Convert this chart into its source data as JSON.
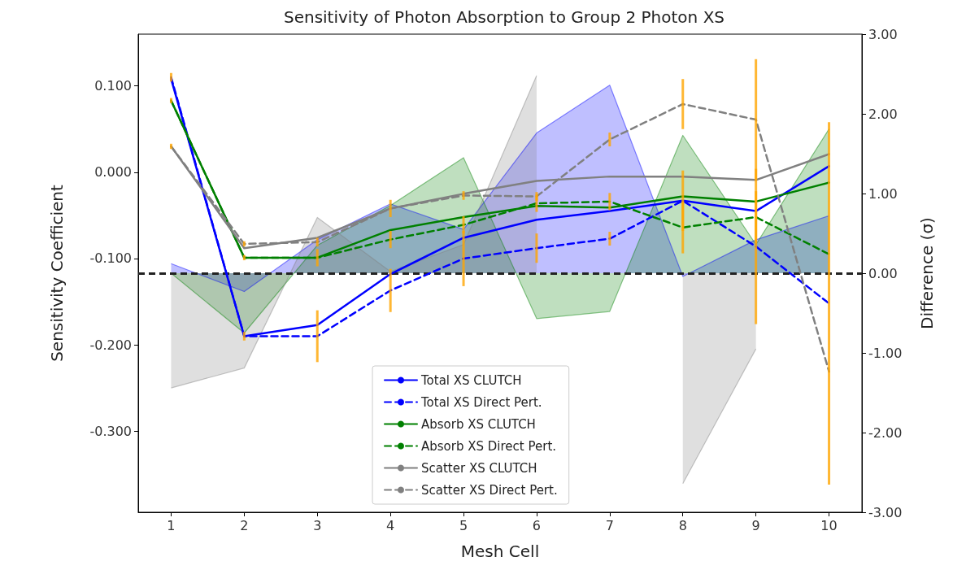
{
  "chart_data": {
    "type": "line",
    "title": "Sensitivity of Photon Absorption to Group 2 Photon XS",
    "xlabel": "Mesh Cell",
    "ylabel": "Sensitivity Coefficient",
    "y2label": "Difference (σ)",
    "x": [
      1,
      2,
      3,
      4,
      5,
      6,
      7,
      8,
      9,
      10
    ],
    "xlim": [
      0.55,
      10.45
    ],
    "xticks": [
      1,
      2,
      3,
      4,
      5,
      6,
      7,
      8,
      9,
      10
    ],
    "ylim": [
      -0.394,
      0.16
    ],
    "yticks": [
      {
        "value": -0.3,
        "label": "-0.300"
      },
      {
        "value": -0.2,
        "label": "-0.200"
      },
      {
        "value": -0.1,
        "label": "-0.100"
      },
      {
        "value": 0,
        "label": "0.000"
      },
      {
        "value": 0.1,
        "label": "0.100"
      }
    ],
    "y2lim": [
      -3,
      3
    ],
    "y2ticks": [
      {
        "value": -3,
        "label": "-3.00"
      },
      {
        "value": -2,
        "label": "-2.00"
      },
      {
        "value": -1,
        "label": "-1.00"
      },
      {
        "value": 0,
        "label": "0.00"
      },
      {
        "value": 1,
        "label": "1.00"
      },
      {
        "value": 2,
        "label": "2.00"
      },
      {
        "value": 3,
        "label": "3.00"
      }
    ],
    "marker": "none",
    "legend": "bottom",
    "series": [
      {
        "type": "area",
        "axis": "y2",
        "color": "#0000ff",
        "values": [
          0.12,
          -0.23,
          0.42,
          0.87,
          0.55,
          1.76,
          2.36,
          -0.04,
          0.42,
          0.72
        ]
      },
      {
        "type": "area",
        "axis": "y2",
        "color": "#008000",
        "values": [
          0,
          -0.75,
          0.35,
          0.85,
          1.45,
          -0.57,
          -0.48,
          1.73,
          0.36,
          1.81
        ]
      },
      {
        "type": "area",
        "axis": "y2",
        "color": "#808080",
        "values": [
          -1.44,
          -1.19,
          0.7,
          0.02,
          0.36,
          2.48,
          null,
          -2.64,
          -0.95,
          null
        ]
      },
      {
        "name": "Total XS CLUTCH",
        "color": "#0000ff",
        "line_style": "solid",
        "values": [
          0.108,
          -0.19,
          -0.177,
          -0.118,
          -0.076,
          -0.055,
          -0.045,
          -0.033,
          -0.045,
          0.007
        ]
      },
      {
        "name": "Total XS Direct Pert.",
        "color": "#0000ff",
        "line_style": "dashed",
        "values": [
          0.11,
          -0.19,
          -0.19,
          -0.137,
          -0.1,
          -0.088,
          -0.077,
          -0.033,
          -0.086,
          -0.152
        ],
        "errors": [
          0.005,
          0.005,
          0.03,
          0.025,
          0.032,
          0.017,
          0.008,
          0.035,
          0.09,
          0.21
        ]
      },
      {
        "name": "Absorb XS CLUTCH",
        "color": "#008000",
        "line_style": "solid",
        "values": [
          0.083,
          -0.099,
          -0.099,
          -0.067,
          -0.052,
          -0.039,
          -0.041,
          -0.028,
          -0.034,
          -0.012
        ]
      },
      {
        "name": "Absorb XS Direct Pert.",
        "color": "#008000",
        "line_style": "dashed",
        "values": [
          0.083,
          -0.099,
          -0.099,
          -0.078,
          -0.061,
          -0.036,
          -0.034,
          -0.064,
          -0.052,
          -0.095
        ],
        "errors": [
          0.003,
          0.003,
          0.01,
          0.01,
          0.01,
          0.01,
          0.01,
          0.03,
          0.03,
          null
        ]
      },
      {
        "name": "Scatter XS CLUTCH",
        "color": "#808080",
        "line_style": "solid",
        "values": [
          0.03,
          -0.088,
          -0.076,
          -0.042,
          -0.025,
          -0.01,
          -0.005,
          -0.005,
          -0.009,
          0.021
        ]
      },
      {
        "name": "Scatter XS Direct Pert.",
        "color": "#808080",
        "line_style": "dashed",
        "values": [
          0.03,
          -0.083,
          -0.081,
          -0.042,
          -0.027,
          -0.028,
          0.038,
          0.079,
          0.061,
          -0.231
        ],
        "errors": [
          0.003,
          0.003,
          0.005,
          0.01,
          0.005,
          0.005,
          0.008,
          0.029,
          0.07,
          null
        ]
      }
    ],
    "ref_lines": [
      {
        "axis": "y2",
        "value": 0,
        "color": "#222222",
        "line_style": "dashed"
      }
    ]
  }
}
